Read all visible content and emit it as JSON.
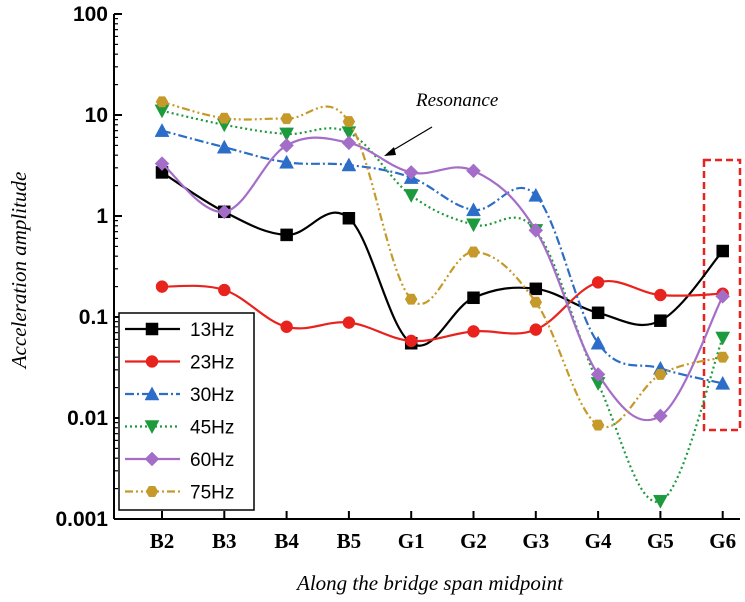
{
  "chart_data": {
    "type": "line",
    "yscale": "log",
    "ylim": [
      0.001,
      100
    ],
    "categories": [
      "B2",
      "B3",
      "B4",
      "B5",
      "G1",
      "G2",
      "G3",
      "G4",
      "G5",
      "G6"
    ],
    "yticks": [
      "0.001",
      "0.01",
      "0.1",
      "1",
      "10",
      "100"
    ],
    "xlabel": "Along the bridge span midpoint",
    "ylabel": "Acceleration amplitude",
    "annotation": {
      "text": "Resonance",
      "points_to": "75Hz between B5 and G1"
    },
    "highlight": {
      "category": "G6",
      "style": "red dashed box"
    },
    "legend_position": "bottom-left",
    "series": [
      {
        "name": "13Hz",
        "color": "#000000",
        "marker": "square",
        "dash": "solid",
        "values": [
          2.7,
          1.1,
          0.65,
          0.95,
          0.055,
          0.155,
          0.19,
          0.11,
          0.092,
          0.45
        ]
      },
      {
        "name": "23Hz",
        "color": "#e8231e",
        "marker": "circle",
        "dash": "solid",
        "values": [
          0.2,
          0.185,
          0.08,
          0.088,
          0.058,
          0.072,
          0.075,
          0.22,
          0.165,
          0.17
        ]
      },
      {
        "name": "30Hz",
        "color": "#2b6dc8",
        "marker": "triangle-up",
        "dash": "dashdot",
        "values": [
          7.0,
          4.8,
          3.4,
          3.2,
          2.4,
          1.15,
          1.6,
          0.055,
          0.031,
          0.022
        ]
      },
      {
        "name": "45Hz",
        "color": "#1e9a3e",
        "marker": "triangle-down",
        "dash": "dot",
        "values": [
          11.0,
          8.0,
          6.5,
          6.7,
          1.6,
          0.82,
          0.72,
          0.022,
          0.0015,
          0.062
        ]
      },
      {
        "name": "60Hz",
        "color": "#a46ec8",
        "marker": "diamond",
        "dash": "solid",
        "values": [
          3.3,
          1.1,
          5.0,
          5.3,
          2.7,
          2.8,
          0.72,
          0.027,
          0.0105,
          0.16
        ]
      },
      {
        "name": "75Hz",
        "color": "#c59a2a",
        "marker": "hexagon",
        "dash": "dashdotdot",
        "values": [
          13.5,
          9.3,
          9.2,
          8.6,
          0.15,
          0.44,
          0.14,
          0.0085,
          0.027,
          0.04
        ]
      }
    ]
  }
}
